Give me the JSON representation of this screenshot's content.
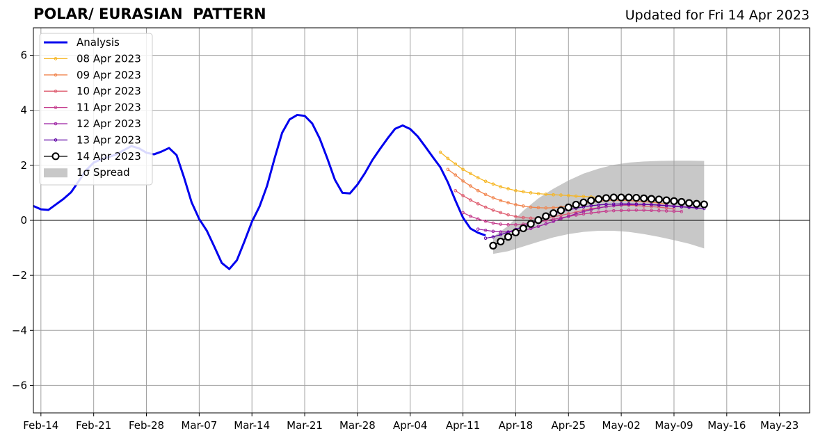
{
  "header": {
    "title": "POLAR/ EURASIAN  PATTERN",
    "updated": "Updated for Fri 14 Apr 2023"
  },
  "chart_data": {
    "type": "line",
    "title": "POLAR/ EURASIAN  PATTERN",
    "subtitle": "Updated for Fri 14 Apr 2023",
    "xlabel": "",
    "ylabel": "",
    "x_axis": {
      "type": "date",
      "range": [
        "2023-02-13",
        "2023-05-27"
      ],
      "tick_labels": [
        "Feb-14",
        "Feb-21",
        "Feb-28",
        "Mar-07",
        "Mar-14",
        "Mar-21",
        "Mar-28",
        "Apr-04",
        "Apr-11",
        "Apr-18",
        "Apr-25",
        "May-02",
        "May-09",
        "May-16",
        "May-23"
      ],
      "tick_dates": [
        "2023-02-14",
        "2023-02-21",
        "2023-02-28",
        "2023-03-07",
        "2023-03-14",
        "2023-03-21",
        "2023-03-28",
        "2023-04-04",
        "2023-04-11",
        "2023-04-18",
        "2023-04-25",
        "2023-05-02",
        "2023-05-09",
        "2023-05-16",
        "2023-05-23"
      ]
    },
    "y_axis": {
      "range": [
        -7,
        7
      ],
      "ticks": [
        -6,
        -4,
        -2,
        0,
        2,
        4,
        6
      ],
      "tick_labels": [
        "−6",
        "−4",
        "−2",
        "0",
        "2",
        "4",
        "6"
      ]
    },
    "grid": true,
    "zero_line": true,
    "legend": {
      "placement": "top-left",
      "entries": [
        "Analysis",
        "08 Apr 2023",
        "09 Apr 2023",
        "10 Apr 2023",
        "11 Apr 2023",
        "12 Apr 2023",
        "13 Apr 2023",
        "14 Apr 2023",
        "1σ Spread"
      ]
    },
    "analysis": {
      "name": "Analysis",
      "color": "#0000ee",
      "points": [
        [
          "2023-02-13",
          0.52
        ],
        [
          "2023-02-14",
          0.4
        ],
        [
          "2023-02-15",
          0.38
        ],
        [
          "2023-02-16",
          0.58
        ],
        [
          "2023-02-17",
          0.78
        ],
        [
          "2023-02-18",
          1.02
        ],
        [
          "2023-02-19",
          1.42
        ],
        [
          "2023-02-20",
          1.82
        ],
        [
          "2023-02-21",
          2.1
        ],
        [
          "2023-02-22",
          2.22
        ],
        [
          "2023-02-23",
          2.3
        ],
        [
          "2023-02-24",
          2.4
        ],
        [
          "2023-02-25",
          2.55
        ],
        [
          "2023-02-26",
          2.7
        ],
        [
          "2023-02-27",
          2.62
        ],
        [
          "2023-02-28",
          2.46
        ],
        [
          "2023-03-01",
          2.4
        ],
        [
          "2023-03-02",
          2.5
        ],
        [
          "2023-03-03",
          2.63
        ],
        [
          "2023-03-04",
          2.37
        ],
        [
          "2023-03-05",
          1.55
        ],
        [
          "2023-03-06",
          0.65
        ],
        [
          "2023-03-07",
          0.05
        ],
        [
          "2023-03-08",
          -0.37
        ],
        [
          "2023-03-09",
          -0.95
        ],
        [
          "2023-03-10",
          -1.55
        ],
        [
          "2023-03-11",
          -1.77
        ],
        [
          "2023-03-12",
          -1.45
        ],
        [
          "2023-03-13",
          -0.77
        ],
        [
          "2023-03-14",
          -0.05
        ],
        [
          "2023-03-15",
          0.5
        ],
        [
          "2023-03-16",
          1.25
        ],
        [
          "2023-03-17",
          2.25
        ],
        [
          "2023-03-18",
          3.18
        ],
        [
          "2023-03-19",
          3.67
        ],
        [
          "2023-03-20",
          3.83
        ],
        [
          "2023-03-21",
          3.8
        ],
        [
          "2023-03-22",
          3.52
        ],
        [
          "2023-03-23",
          2.97
        ],
        [
          "2023-03-24",
          2.25
        ],
        [
          "2023-03-25",
          1.48
        ],
        [
          "2023-03-26",
          1.0
        ],
        [
          "2023-03-27",
          0.98
        ],
        [
          "2023-03-28",
          1.3
        ],
        [
          "2023-03-29",
          1.72
        ],
        [
          "2023-03-30",
          2.2
        ],
        [
          "2023-03-31",
          2.6
        ],
        [
          "2023-04-01",
          2.98
        ],
        [
          "2023-04-02",
          3.33
        ],
        [
          "2023-04-03",
          3.45
        ],
        [
          "2023-04-04",
          3.32
        ],
        [
          "2023-04-05",
          3.05
        ],
        [
          "2023-04-06",
          2.68
        ],
        [
          "2023-04-07",
          2.3
        ],
        [
          "2023-04-08",
          1.93
        ],
        [
          "2023-04-09",
          1.38
        ],
        [
          "2023-04-10",
          0.72
        ],
        [
          "2023-04-11",
          0.1
        ],
        [
          "2023-04-12",
          -0.3
        ],
        [
          "2023-04-13",
          -0.45
        ],
        [
          "2023-04-14",
          -0.55
        ]
      ]
    },
    "forecasts": [
      {
        "name": "08 Apr 2023",
        "color": "#f6b521",
        "start": "2023-04-08",
        "values": [
          2.48,
          2.25,
          2.05,
          1.85,
          1.7,
          1.55,
          1.42,
          1.32,
          1.22,
          1.15,
          1.08,
          1.04,
          1.0,
          0.97,
          0.95,
          0.93,
          0.92,
          0.9,
          0.88,
          0.87,
          0.85,
          0.84,
          0.84,
          0.83,
          0.82,
          0.82,
          0.81,
          0.8,
          0.78,
          0.77
        ]
      },
      {
        "name": "09 Apr 2023",
        "color": "#f1834b",
        "start": "2023-04-09",
        "values": [
          1.85,
          1.65,
          1.43,
          1.25,
          1.08,
          0.94,
          0.82,
          0.72,
          0.64,
          0.57,
          0.52,
          0.48,
          0.46,
          0.45,
          0.46,
          0.48,
          0.52,
          0.57,
          0.62,
          0.66,
          0.69,
          0.72,
          0.73,
          0.73,
          0.72,
          0.7,
          0.68,
          0.66,
          0.63,
          0.6
        ]
      },
      {
        "name": "10 Apr 2023",
        "color": "#de5b6e",
        "start": "2023-04-10",
        "values": [
          1.08,
          0.9,
          0.74,
          0.6,
          0.48,
          0.37,
          0.28,
          0.2,
          0.14,
          0.1,
          0.08,
          0.08,
          0.1,
          0.13,
          0.18,
          0.24,
          0.3,
          0.36,
          0.42,
          0.46,
          0.5,
          0.53,
          0.55,
          0.55,
          0.54,
          0.52,
          0.5,
          0.48,
          0.45,
          0.42
        ]
      },
      {
        "name": "11 Apr 2023",
        "color": "#c53c8d",
        "start": "2023-04-11",
        "values": [
          0.28,
          0.15,
          0.05,
          -0.03,
          -0.1,
          -0.14,
          -0.16,
          -0.16,
          -0.14,
          -0.1,
          -0.06,
          -0.01,
          0.04,
          0.09,
          0.14,
          0.19,
          0.23,
          0.27,
          0.3,
          0.33,
          0.35,
          0.36,
          0.37,
          0.37,
          0.37,
          0.36,
          0.35,
          0.34,
          0.33,
          0.32
        ]
      },
      {
        "name": "12 Apr 2023",
        "color": "#9b1fa2",
        "start": "2023-04-13",
        "values": [
          -0.32,
          -0.36,
          -0.4,
          -0.42,
          -0.42,
          -0.4,
          -0.36,
          -0.3,
          -0.22,
          -0.13,
          -0.04,
          0.06,
          0.15,
          0.24,
          0.32,
          0.39,
          0.45,
          0.5,
          0.53,
          0.56,
          0.57,
          0.58,
          0.58,
          0.57,
          0.56,
          0.54,
          0.52,
          0.5,
          0.48,
          0.46
        ]
      },
      {
        "name": "13 Apr 2023",
        "color": "#5d00a3",
        "start": "2023-04-14",
        "values": [
          -0.65,
          -0.6,
          -0.52,
          -0.43,
          -0.33,
          -0.22,
          -0.1,
          0.02,
          0.13,
          0.23,
          0.31,
          0.38,
          0.44,
          0.49,
          0.53,
          0.56,
          0.58,
          0.59,
          0.6,
          0.6,
          0.59,
          0.58,
          0.57,
          0.55,
          0.53,
          0.51,
          0.49,
          0.47,
          0.45,
          0.43
        ]
      }
    ],
    "latest_forecast": {
      "name": "14 Apr 2023",
      "color": "#000000",
      "start": "2023-04-15",
      "values": [
        -0.92,
        -0.77,
        -0.6,
        -0.44,
        -0.29,
        -0.13,
        0.01,
        0.15,
        0.26,
        0.36,
        0.47,
        0.57,
        0.65,
        0.72,
        0.77,
        0.81,
        0.83,
        0.83,
        0.83,
        0.82,
        0.8,
        0.78,
        0.76,
        0.73,
        0.7,
        0.67,
        0.63,
        0.6,
        0.58
      ]
    },
    "spread": {
      "name": "1σ Spread",
      "color": "#c8c8c8",
      "dates": [
        "2023-04-15",
        "2023-04-17",
        "2023-04-19",
        "2023-04-21",
        "2023-04-23",
        "2023-04-25",
        "2023-04-27",
        "2023-04-29",
        "2023-05-01",
        "2023-05-03",
        "2023-05-05",
        "2023-05-07",
        "2023-05-09",
        "2023-05-11",
        "2023-05-13"
      ],
      "upper": [
        -0.6,
        -0.2,
        0.35,
        0.8,
        1.15,
        1.45,
        1.7,
        1.88,
        2.02,
        2.1,
        2.14,
        2.16,
        2.17,
        2.17,
        2.16
      ],
      "lower": [
        -1.22,
        -1.12,
        -0.95,
        -0.78,
        -0.62,
        -0.5,
        -0.42,
        -0.38,
        -0.38,
        -0.42,
        -0.5,
        -0.6,
        -0.72,
        -0.85,
        -1.02
      ]
    }
  }
}
